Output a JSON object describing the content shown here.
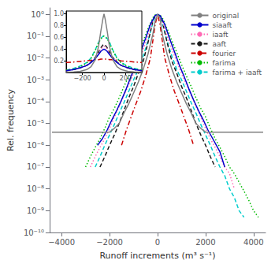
{
  "chart_data": [
    {
      "type": "line",
      "xlabel": "Runoff increments (m³ s⁻¹)",
      "ylabel": "Rel. frequency",
      "log": "y",
      "grid": false,
      "legend": "upper right",
      "xlim": [
        -4500,
        4500
      ],
      "ylim": [
        1e-10,
        2
      ],
      "xticks": [
        {
          "value": -4000,
          "label": "−4000"
        },
        {
          "value": -2000,
          "label": "−2000"
        },
        0,
        2000,
        4000
      ],
      "yticks": [
        {
          "value": 1e-10,
          "label": "10⁻¹⁰"
        },
        {
          "value": 1e-09,
          "label": "10⁻⁹"
        },
        {
          "value": 1e-08,
          "label": "10⁻⁸"
        },
        {
          "value": 1e-07,
          "label": "10⁻⁷"
        },
        {
          "value": 1e-06,
          "label": "10⁻⁶"
        },
        {
          "value": 1e-05,
          "label": "10⁻⁵"
        },
        {
          "value": 0.0001,
          "label": "10⁻⁴"
        },
        {
          "value": 0.001,
          "label": "10⁻³"
        },
        {
          "value": 0.01,
          "label": "10⁻²"
        },
        {
          "value": 0.1,
          "label": "10⁻¹"
        },
        {
          "value": 1,
          "label": "10⁰"
        }
      ],
      "series": [
        {
          "name": "original",
          "color": "#808080",
          "line_style": "solid",
          "x": [
            -4400,
            -4000,
            -3600,
            -3200,
            -2800,
            -2400,
            -2000,
            -1800,
            -1600,
            -1400,
            -1200,
            -1000,
            -800,
            -600,
            -400,
            -200,
            -100,
            0,
            100,
            200,
            400,
            600,
            800,
            1000,
            1200,
            1400,
            1600,
            1800,
            2000,
            2200,
            2600,
            3000,
            3400,
            3800,
            4200,
            4400
          ],
          "values": [
            4e-06,
            4e-06,
            4e-06,
            4e-06,
            4e-06,
            4e-06,
            4e-06,
            6e-06,
            1e-05,
            3e-05,
            8e-05,
            0.00025,
            0.0008,
            0.003,
            0.015,
            0.12,
            0.5,
            1.0,
            0.7,
            0.12,
            0.015,
            0.003,
            0.0008,
            0.00025,
            8e-05,
            3e-05,
            1e-05,
            6e-06,
            4e-06,
            4e-06,
            4e-06,
            4e-06,
            4e-06,
            4e-06,
            4e-06,
            4e-06
          ]
        },
        {
          "name": "siaaft",
          "color": "#0000cc",
          "line_style": "solid",
          "x": [
            -2500,
            -2300,
            -2100,
            -1900,
            -1700,
            -1500,
            -1300,
            -1100,
            -900,
            -700,
            -500,
            -300,
            -100,
            0,
            100,
            300,
            500,
            700,
            900,
            1100,
            1300,
            1500,
            1700,
            1900,
            2100,
            2300,
            2600,
            2800
          ],
          "values": [
            1e-06,
            2e-06,
            5e-06,
            1.5e-05,
            4e-05,
            0.00012,
            0.0004,
            0.0015,
            0.005,
            0.02,
            0.08,
            0.35,
            0.9,
            1.0,
            0.9,
            0.35,
            0.08,
            0.02,
            0.005,
            0.0015,
            0.0004,
            0.00012,
            4e-05,
            1.5e-05,
            5e-06,
            2e-06,
            5e-07,
            1e-07
          ]
        },
        {
          "name": "iaaft",
          "color": "#ff69b4",
          "line_style": "dotted",
          "x": [
            -2800,
            -2600,
            -2400,
            -2200,
            -2000,
            -1800,
            -1600,
            -1400,
            -1200,
            -1000,
            -800,
            -600,
            -400,
            -200,
            -100,
            0,
            100,
            200,
            400,
            600,
            800,
            1000,
            1200,
            1400,
            1600,
            1800,
            2000,
            2200,
            2400,
            2600,
            2800,
            3000,
            3200
          ],
          "values": [
            1e-07,
            3e-07,
            8e-07,
            2e-06,
            6e-06,
            2e-05,
            6e-05,
            0.0002,
            0.0006,
            0.002,
            0.007,
            0.025,
            0.1,
            0.5,
            0.85,
            1.0,
            0.85,
            0.5,
            0.1,
            0.025,
            0.007,
            0.002,
            0.0006,
            0.0002,
            6e-05,
            2e-05,
            6e-06,
            2e-06,
            8e-07,
            3e-07,
            1e-07,
            5e-08,
            1e-08
          ]
        },
        {
          "name": "aaft",
          "color": "#1a1a1a",
          "line_style": "dashed",
          "x": [
            -2400,
            -2200,
            -2000,
            -1800,
            -1600,
            -1400,
            -1200,
            -1000,
            -800,
            -600,
            -400,
            -200,
            -100,
            0,
            100,
            200,
            400,
            600,
            800,
            1000,
            1200,
            1400,
            1600,
            1800,
            2000,
            2200,
            2400
          ],
          "values": [
            1e-07,
            3e-07,
            1e-06,
            3e-06,
            1e-05,
            4e-05,
            0.00015,
            0.0005,
            0.002,
            0.007,
            0.05,
            0.5,
            0.85,
            1.0,
            0.85,
            0.5,
            0.05,
            0.007,
            0.002,
            0.0005,
            0.00015,
            4e-05,
            1e-05,
            3e-06,
            1e-06,
            3e-07,
            1e-07
          ]
        },
        {
          "name": "fourier",
          "color": "#cc0000",
          "line_style": "dashdot",
          "x": [
            -1500,
            -1300,
            -1100,
            -900,
            -700,
            -500,
            -300,
            -100,
            0,
            100,
            300,
            500,
            700,
            900,
            1100,
            1300,
            1500
          ],
          "values": [
            1e-06,
            5e-06,
            2e-05,
            8e-05,
            0.0003,
            0.0015,
            0.01,
            0.35,
            1.0,
            0.35,
            0.01,
            0.0015,
            0.0003,
            8e-05,
            2e-05,
            5e-06,
            1e-06
          ]
        },
        {
          "name": "farima",
          "color": "#00bb00",
          "line_style": "dotted",
          "x": [
            -3000,
            -2800,
            -2600,
            -2400,
            -2200,
            -2000,
            -1800,
            -1600,
            -1400,
            -1200,
            -1000,
            -800,
            -600,
            -400,
            -200,
            -100,
            0,
            100,
            200,
            400,
            600,
            800,
            1000,
            1200,
            1400,
            1600,
            1800,
            2000,
            2200,
            2400,
            2600,
            2800,
            3000,
            3200,
            3400,
            3600,
            3800,
            4000,
            4200
          ],
          "values": [
            1e-07,
            3e-07,
            8e-07,
            2e-06,
            6e-06,
            2e-05,
            5e-05,
            0.00015,
            0.0005,
            0.0015,
            0.005,
            0.018,
            0.06,
            0.22,
            0.7,
            0.95,
            1.0,
            0.95,
            0.7,
            0.22,
            0.06,
            0.018,
            0.005,
            0.0015,
            0.0005,
            0.00015,
            5e-05,
            2e-05,
            6e-06,
            2e-06,
            8e-07,
            3e-07,
            1e-07,
            5e-08,
            2e-08,
            8e-09,
            3e-09,
            1e-09,
            5e-10
          ]
        },
        {
          "name": "farima + iaaft",
          "color": "#00cccc",
          "line_style": "dashed",
          "x": [
            -2600,
            -2400,
            -2200,
            -2000,
            -1800,
            -1600,
            -1400,
            -1200,
            -1000,
            -800,
            -600,
            -400,
            -200,
            -100,
            0,
            100,
            200,
            400,
            600,
            800,
            1000,
            1200,
            1400,
            1600,
            1800,
            2000,
            2200,
            2400,
            2600,
            2800,
            3000,
            3200,
            3400,
            3600
          ],
          "values": [
            1e-07,
            3e-07,
            1e-06,
            3e-06,
            9e-06,
            3e-05,
            9e-05,
            0.0003,
            0.001,
            0.003,
            0.012,
            0.06,
            0.4,
            0.8,
            1.0,
            0.8,
            0.4,
            0.06,
            0.012,
            0.003,
            0.001,
            0.0003,
            9e-05,
            3e-05,
            9e-06,
            3e-06,
            1e-06,
            3e-07,
            1e-07,
            4e-08,
            1e-08,
            4e-09,
            1e-09,
            5e-10
          ]
        }
      ]
    },
    {
      "type": "line",
      "grid": false,
      "xlim": [
        -350,
        350
      ],
      "ylim": [
        0,
        1.05
      ],
      "xticks": [
        {
          "value": -200,
          "label": "−200"
        },
        0,
        200
      ],
      "yticks": [
        0.2,
        0.4,
        0.6,
        0.8,
        {
          "value": 1.0,
          "label": "1.0"
        }
      ],
      "series": [
        {
          "name": "original",
          "color": "#808080",
          "line_style": "solid",
          "x": [
            -350,
            -280,
            -220,
            -160,
            -120,
            -80,
            -50,
            -30,
            -10,
            0,
            10,
            30,
            50,
            80,
            120,
            160,
            220,
            280,
            350
          ],
          "values": [
            0.005,
            0.01,
            0.02,
            0.05,
            0.1,
            0.22,
            0.45,
            0.7,
            0.92,
            1.0,
            0.92,
            0.7,
            0.45,
            0.22,
            0.1,
            0.05,
            0.02,
            0.01,
            0.005
          ]
        },
        {
          "name": "siaaft",
          "color": "#0000cc",
          "line_style": "solid",
          "x": [
            -350,
            -280,
            -220,
            -160,
            -120,
            -80,
            -50,
            -30,
            -10,
            0,
            10,
            30,
            50,
            80,
            120,
            160,
            220,
            280,
            350
          ],
          "values": [
            0.03,
            0.05,
            0.08,
            0.12,
            0.17,
            0.24,
            0.31,
            0.36,
            0.39,
            0.4,
            0.39,
            0.36,
            0.31,
            0.24,
            0.17,
            0.12,
            0.08,
            0.05,
            0.03
          ]
        },
        {
          "name": "iaaft",
          "color": "#ff69b4",
          "line_style": "dotted",
          "x": [
            -350,
            -280,
            -220,
            -160,
            -120,
            -80,
            -50,
            -30,
            -10,
            0,
            10,
            30,
            50,
            80,
            120,
            160,
            220,
            280,
            350
          ],
          "values": [
            0.03,
            0.05,
            0.08,
            0.12,
            0.17,
            0.25,
            0.33,
            0.4,
            0.44,
            0.45,
            0.44,
            0.4,
            0.33,
            0.25,
            0.17,
            0.12,
            0.08,
            0.05,
            0.03
          ]
        },
        {
          "name": "aaft",
          "color": "#1a1a1a",
          "line_style": "dashed",
          "x": [
            -350,
            -280,
            -220,
            -160,
            -120,
            -80,
            -50,
            -30,
            -10,
            0,
            10,
            30,
            50,
            80,
            120,
            160,
            220,
            280,
            350
          ],
          "values": [
            0.03,
            0.05,
            0.08,
            0.12,
            0.18,
            0.26,
            0.35,
            0.42,
            0.47,
            0.48,
            0.47,
            0.42,
            0.35,
            0.26,
            0.18,
            0.12,
            0.08,
            0.05,
            0.03
          ]
        },
        {
          "name": "fourier",
          "color": "#cc0000",
          "line_style": "dashdot",
          "x": [
            -350,
            -280,
            -220,
            -160,
            -120,
            -80,
            -50,
            -30,
            -10,
            0,
            10,
            30,
            50,
            80,
            120,
            160,
            220,
            280,
            350
          ],
          "values": [
            0.17,
            0.18,
            0.19,
            0.2,
            0.21,
            0.22,
            0.22,
            0.23,
            0.23,
            0.23,
            0.23,
            0.23,
            0.22,
            0.22,
            0.21,
            0.2,
            0.19,
            0.18,
            0.17
          ]
        },
        {
          "name": "farima",
          "color": "#00bb00",
          "line_style": "dotted",
          "x": [
            -350,
            -280,
            -220,
            -160,
            -120,
            -80,
            -50,
            -30,
            -10,
            0,
            10,
            30,
            50,
            80,
            120,
            160,
            220,
            280,
            350
          ],
          "values": [
            0.04,
            0.06,
            0.1,
            0.16,
            0.24,
            0.38,
            0.51,
            0.57,
            0.61,
            0.62,
            0.61,
            0.57,
            0.51,
            0.38,
            0.24,
            0.16,
            0.1,
            0.06,
            0.04
          ]
        },
        {
          "name": "farima + iaaft",
          "color": "#00cccc",
          "line_style": "dashed",
          "x": [
            -350,
            -280,
            -220,
            -160,
            -120,
            -80,
            -50,
            -30,
            -10,
            0,
            10,
            30,
            50,
            80,
            120,
            160,
            220,
            280,
            350
          ],
          "values": [
            0.04,
            0.07,
            0.11,
            0.17,
            0.25,
            0.39,
            0.52,
            0.58,
            0.62,
            0.63,
            0.62,
            0.58,
            0.52,
            0.39,
            0.25,
            0.17,
            0.11,
            0.07,
            0.04
          ]
        }
      ]
    }
  ]
}
